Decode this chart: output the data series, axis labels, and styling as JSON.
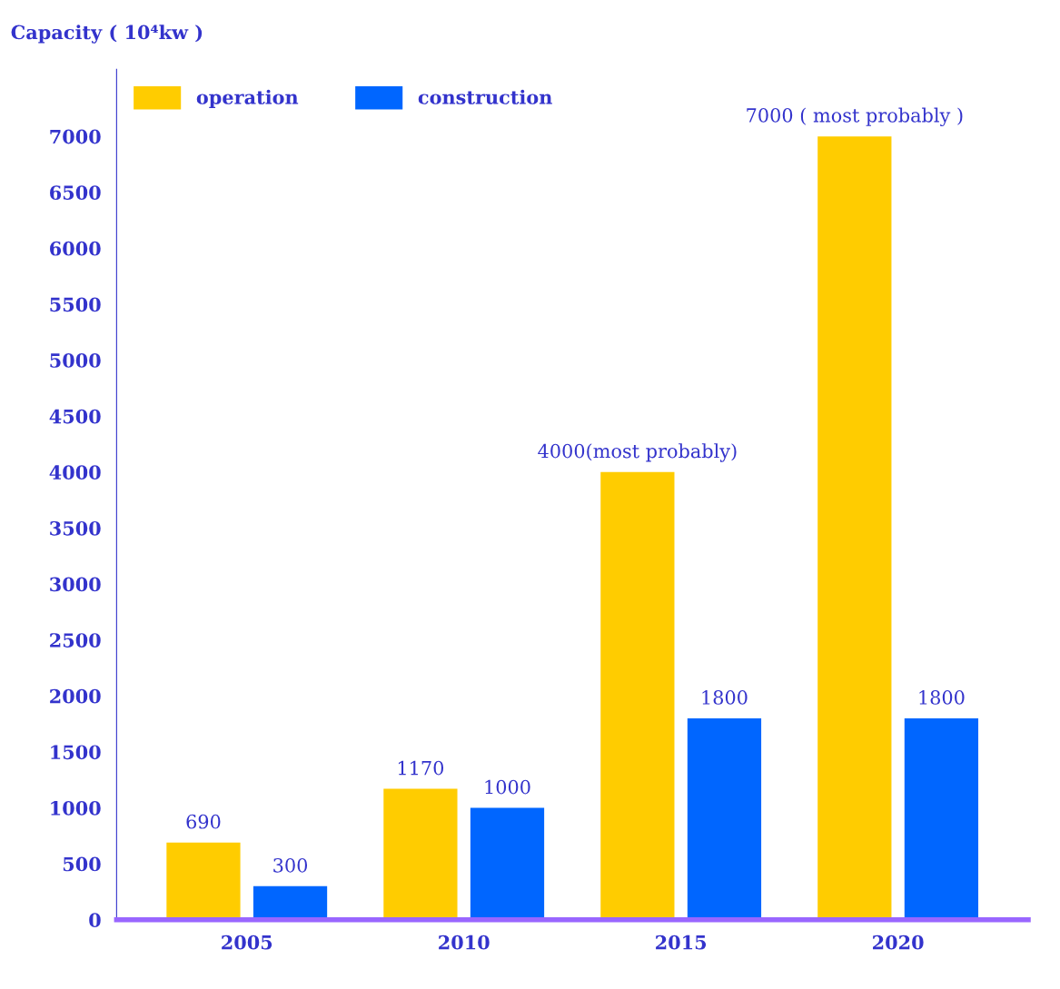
{
  "chart_data": {
    "type": "bar",
    "ylabel": "Capacity ( 10⁴kw )",
    "categories": [
      "2005",
      "2010",
      "2015",
      "2020"
    ],
    "series": [
      {
        "name": "operation",
        "color": "#ffcc00",
        "values": [
          690,
          1170,
          4000,
          7000
        ],
        "value_labels": [
          "690",
          "1170",
          "4000(most probably)",
          "7000 ( most probably )"
        ]
      },
      {
        "name": "construction",
        "color": "#0066ff",
        "values": [
          300,
          1000,
          1800,
          1800
        ],
        "value_labels": [
          "300",
          "1000",
          "1800",
          "1800"
        ]
      }
    ],
    "ylim": [
      0,
      7600
    ],
    "yticks": [
      0,
      500,
      1000,
      1500,
      2000,
      2500,
      3000,
      3500,
      4000,
      4500,
      5000,
      5500,
      6000,
      6500,
      7000
    ],
    "grid": false,
    "legend": "top left"
  }
}
